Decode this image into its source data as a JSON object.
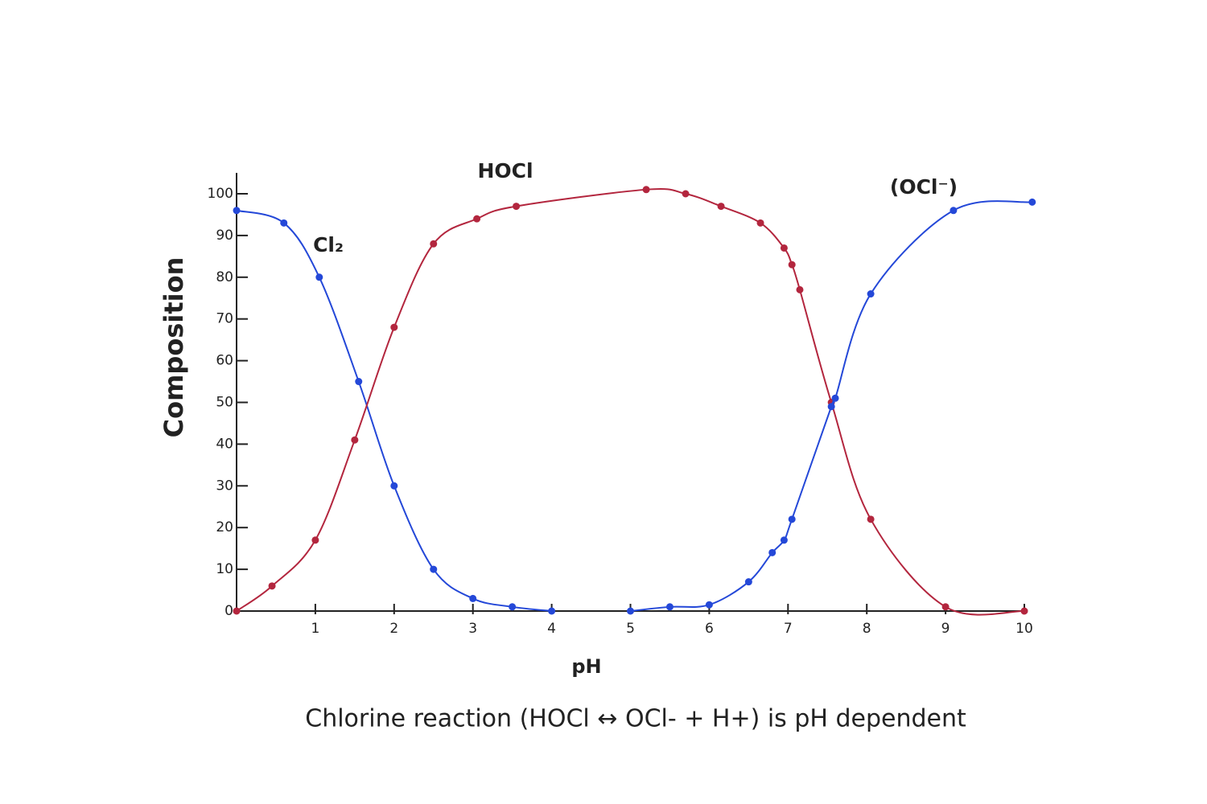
{
  "chart_data": {
    "type": "line",
    "title": "Chlorine reaction (HOCl ↔ OCl- + H+) is pH dependent",
    "xlabel": "pH",
    "ylabel": "Composition",
    "xlim": [
      0,
      10
    ],
    "ylim": [
      0,
      100
    ],
    "xticks": [
      1,
      2,
      3,
      4,
      5,
      6,
      7,
      8,
      9,
      10
    ],
    "yticks": [
      0,
      10,
      20,
      30,
      40,
      50,
      60,
      70,
      80,
      90,
      100
    ],
    "series": [
      {
        "name": "Cl₂",
        "color": "#2448d8",
        "x": [
          0,
          0.6,
          1.05,
          1.55,
          2.0,
          2.5,
          3.0,
          3.5,
          4.0
        ],
        "values": [
          96,
          93,
          80,
          55,
          30,
          10,
          3,
          1,
          0
        ]
      },
      {
        "name": "HOCl",
        "color": "#b3263e",
        "x": [
          0,
          0.45,
          1.0,
          1.5,
          2.0,
          2.5,
          3.05,
          3.55,
          5.2,
          5.7,
          6.15,
          6.65,
          6.95,
          7.05,
          7.15,
          7.55,
          8.05,
          9.0,
          10
        ],
        "values": [
          0,
          6,
          17,
          41,
          68,
          88,
          94,
          97,
          101,
          100,
          97,
          93,
          87,
          83,
          77,
          50,
          22,
          1,
          0
        ]
      },
      {
        "name": "(OCl⁻)",
        "color": "#2448d8",
        "x": [
          5.0,
          5.5,
          6.0,
          6.5,
          6.8,
          6.95,
          7.05,
          7.55,
          7.6,
          8.05,
          9.1,
          10.1
        ],
        "values": [
          0,
          1,
          1.5,
          7,
          14,
          17,
          22,
          49,
          51,
          76,
          96,
          98
        ]
      }
    ]
  }
}
